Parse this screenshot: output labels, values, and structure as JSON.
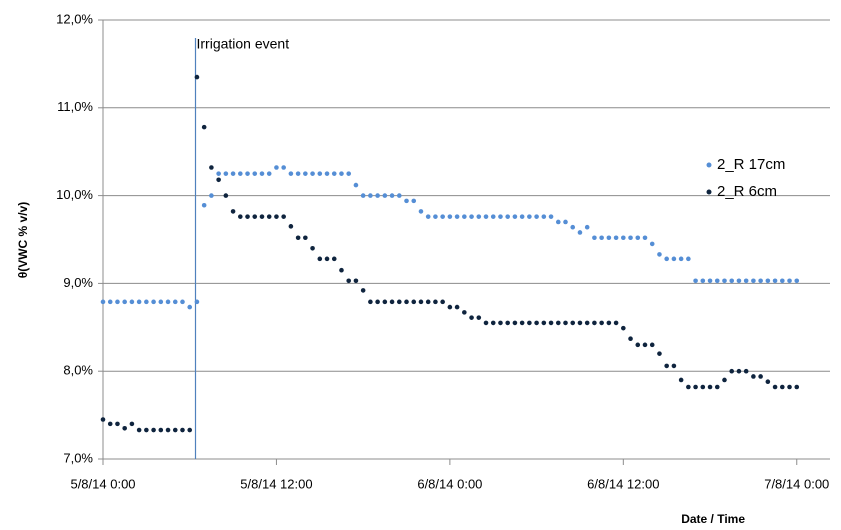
{
  "chart_data": {
    "type": "scatter",
    "ylabel": "θ(VWC % v/v)",
    "xlabel": "Date / Time",
    "annotation": {
      "text": "Irrigation event",
      "x": 6.4
    },
    "x": [
      0,
      0.5,
      1,
      1.5,
      2,
      2.5,
      3,
      3.5,
      4,
      4.5,
      5,
      5.5,
      6,
      6.5,
      7,
      7.5,
      8,
      8.5,
      9,
      9.5,
      10,
      10.5,
      11,
      11.5,
      12,
      12.5,
      13,
      13.5,
      14,
      14.5,
      15,
      15.5,
      16,
      16.5,
      17,
      17.5,
      18,
      18.5,
      19,
      19.5,
      20,
      20.5,
      21,
      21.5,
      22,
      22.5,
      23,
      23.5,
      24,
      24.5,
      25,
      25.5,
      26,
      26.5,
      27,
      27.5,
      28,
      28.5,
      29,
      29.5,
      30,
      30.5,
      31,
      31.5,
      32,
      32.5,
      33,
      33.5,
      34,
      34.5,
      35,
      35.5,
      36,
      36.5,
      37,
      37.5,
      38,
      38.5,
      39,
      39.5,
      40,
      40.5,
      41,
      41.5,
      42,
      42.5,
      43,
      43.5,
      44,
      44.5,
      45,
      45.5,
      46,
      46.5,
      47,
      47.5,
      48
    ],
    "series": [
      {
        "name": "2_R 17cm",
        "color": "#558ed5",
        "values": [
          8.79,
          8.79,
          8.79,
          8.79,
          8.79,
          8.79,
          8.79,
          8.79,
          8.79,
          8.79,
          8.79,
          8.79,
          8.73,
          8.79,
          9.89,
          10.0,
          10.25,
          10.25,
          10.25,
          10.25,
          10.25,
          10.25,
          10.25,
          10.25,
          10.32,
          10.32,
          10.25,
          10.25,
          10.25,
          10.25,
          10.25,
          10.25,
          10.25,
          10.25,
          10.25,
          10.12,
          10.0,
          10.0,
          10.0,
          10.0,
          10.0,
          10.0,
          9.94,
          9.94,
          9.82,
          9.76,
          9.76,
          9.76,
          9.76,
          9.76,
          9.76,
          9.76,
          9.76,
          9.76,
          9.76,
          9.76,
          9.76,
          9.76,
          9.76,
          9.76,
          9.76,
          9.76,
          9.76,
          9.7,
          9.7,
          9.64,
          9.58,
          9.64,
          9.52,
          9.52,
          9.52,
          9.52,
          9.52,
          9.52,
          9.52,
          9.52,
          9.45,
          9.33,
          9.28,
          9.28,
          9.28,
          9.28,
          9.03,
          9.03,
          9.03,
          9.03,
          9.03,
          9.03,
          9.03,
          9.03,
          9.03,
          9.03,
          9.03,
          9.03,
          9.03,
          9.03,
          9.03
        ]
      },
      {
        "name": "2_R 6cm",
        "color": "#0f243e",
        "values": [
          7.45,
          7.4,
          7.4,
          7.35,
          7.4,
          7.33,
          7.33,
          7.33,
          7.33,
          7.33,
          7.33,
          7.33,
          7.33,
          11.35,
          10.78,
          10.32,
          10.18,
          10.0,
          9.82,
          9.76,
          9.76,
          9.76,
          9.76,
          9.76,
          9.76,
          9.76,
          9.65,
          9.52,
          9.52,
          9.4,
          9.28,
          9.28,
          9.28,
          9.15,
          9.03,
          9.03,
          8.92,
          8.79,
          8.79,
          8.79,
          8.79,
          8.79,
          8.79,
          8.79,
          8.79,
          8.79,
          8.79,
          8.79,
          8.73,
          8.73,
          8.67,
          8.61,
          8.61,
          8.55,
          8.55,
          8.55,
          8.55,
          8.55,
          8.55,
          8.55,
          8.55,
          8.55,
          8.55,
          8.55,
          8.55,
          8.55,
          8.55,
          8.55,
          8.55,
          8.55,
          8.55,
          8.55,
          8.49,
          8.37,
          8.3,
          8.3,
          8.3,
          8.2,
          8.06,
          8.06,
          7.9,
          7.82,
          7.82,
          7.82,
          7.82,
          7.82,
          7.9,
          8.0,
          8.0,
          8.0,
          7.94,
          7.94,
          7.88,
          7.82,
          7.82,
          7.82,
          7.82
        ]
      }
    ],
    "xlim": [
      0,
      50.3
    ],
    "xticks": [
      {
        "value": 0,
        "label": "5/8/14 0:00"
      },
      {
        "value": 12,
        "label": "5/8/14 12:00"
      },
      {
        "value": 24,
        "label": "6/8/14 0:00"
      },
      {
        "value": 36,
        "label": "6/8/14 12:00"
      },
      {
        "value": 48,
        "label": "7/8/14 0:00"
      }
    ],
    "ylim": [
      7,
      12
    ],
    "yticks": [
      {
        "value": 7,
        "label": "7,0%"
      },
      {
        "value": 8,
        "label": "8,0%"
      },
      {
        "value": 9,
        "label": "9,0%"
      },
      {
        "value": 10,
        "label": "10,0%"
      },
      {
        "value": 11,
        "label": "11,0%"
      },
      {
        "value": 12,
        "label": "12,0%"
      }
    ],
    "grid": true,
    "legend": "right"
  }
}
